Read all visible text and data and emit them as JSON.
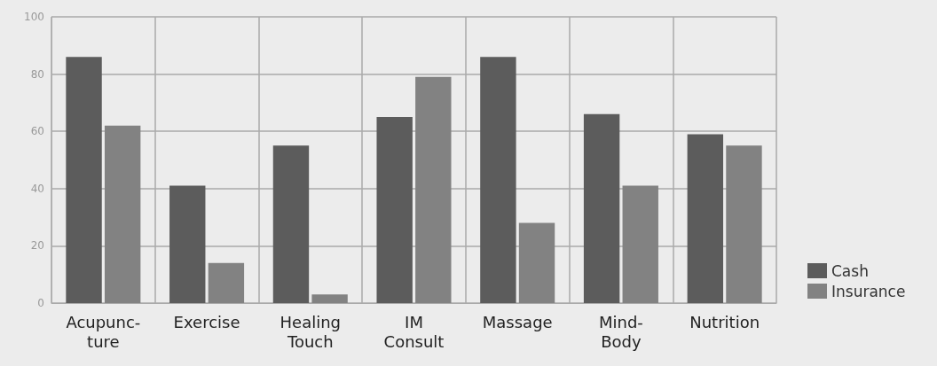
{
  "chart_data": {
    "type": "bar",
    "categories": [
      "Acupunc-\nture",
      "Exercise",
      "Healing\nTouch",
      "IM\nConsult",
      "Massage",
      "Mind-\nBody",
      "Nutrition"
    ],
    "series": [
      {
        "name": "Cash",
        "color": "#5c5c5c",
        "values": [
          86,
          41,
          55,
          65,
          86,
          66,
          59
        ]
      },
      {
        "name": "Insurance",
        "color": "#828282",
        "values": [
          62,
          14,
          3,
          79,
          28,
          41,
          55
        ]
      }
    ],
    "ylim": [
      0,
      100
    ],
    "yticks": [
      0,
      20,
      40,
      60,
      80,
      100
    ],
    "grid": true,
    "legend": "bottom right"
  }
}
